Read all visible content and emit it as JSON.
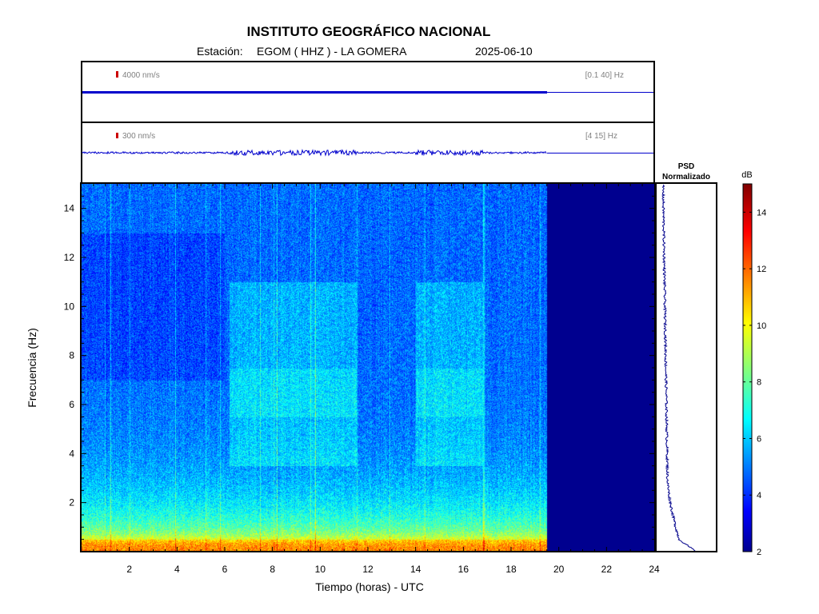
{
  "header": {
    "title": "INSTITUTO GEOGRÁFICO NACIONAL",
    "station_label": "Estación:",
    "station": "EGOM ( HHZ ) - LA GOMERA",
    "date": "2025-06-10"
  },
  "traces": [
    {
      "scale_label": "4000 nm/s",
      "band_label": "[0.1 40] Hz",
      "color": "#0000cc",
      "scale_color": "#cc0000",
      "data_end_hour": 19.5
    },
    {
      "scale_label": "300 nm/s",
      "band_label": "[4 15] Hz",
      "color": "#0000cc",
      "scale_color": "#cc0000",
      "data_end_hour": 19.5
    }
  ],
  "psd": {
    "title_line1": "PSD",
    "title_line2": "Normalizado",
    "color": "#00008b"
  },
  "colorbar": {
    "label": "dB",
    "min": 2,
    "max": 15,
    "ticks": [
      "2",
      "4",
      "6",
      "8",
      "10",
      "12",
      "14"
    ]
  },
  "chart_data": {
    "type": "heatmap",
    "xlabel": "Tiempo (horas) - UTC",
    "ylabel": "Frecuencia  (Hz)",
    "xlim": [
      0,
      24
    ],
    "ylim": [
      0,
      15
    ],
    "xticks": [
      "2",
      "4",
      "6",
      "8",
      "10",
      "12",
      "14",
      "16",
      "18",
      "20",
      "22",
      "24"
    ],
    "yticks": [
      "2",
      "4",
      "6",
      "8",
      "10",
      "12",
      "14"
    ],
    "data_end_hour": 19.5,
    "no_data_color": "#00008f",
    "activity_bands_hours": [
      [
        6.2,
        9.0
      ],
      [
        9.0,
        11.5
      ],
      [
        14.0,
        16.8
      ]
    ]
  }
}
